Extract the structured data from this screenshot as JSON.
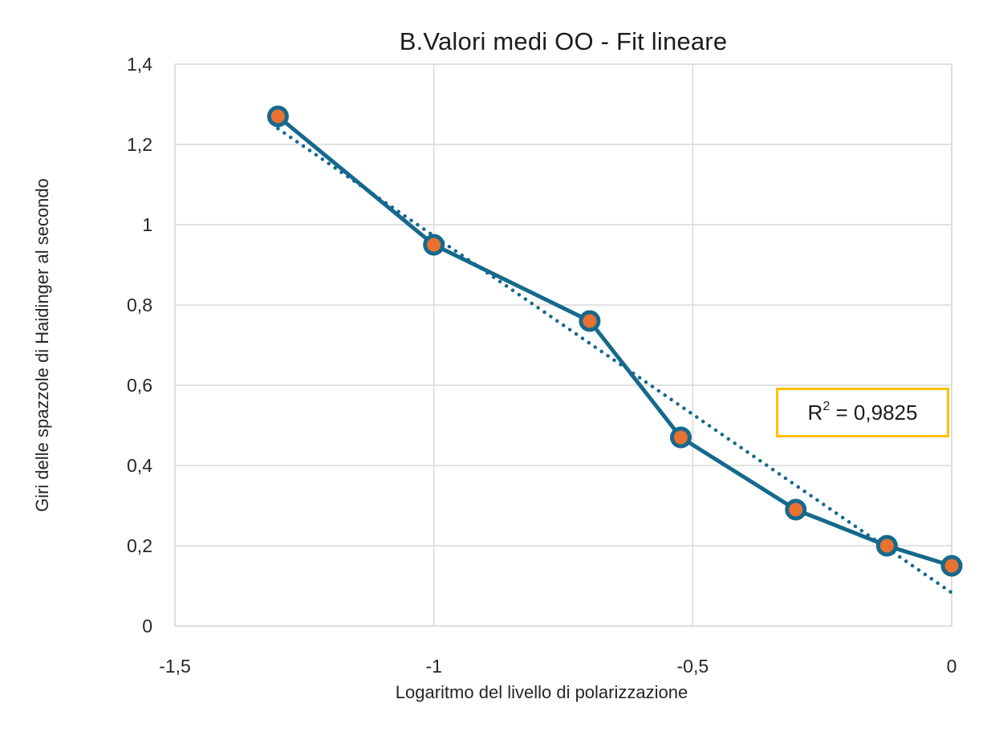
{
  "page": {
    "background": "#FFFFFF"
  },
  "chart_data": {
    "type": "line",
    "title": "B.Valori medi OO - Fit lineare",
    "xlabel": "Logaritmo del livello di polarizzazione",
    "ylabel": "Giri delle spazzole di Haidinger al secondo",
    "series": {
      "x": [
        -1.301,
        -1.0,
        -0.699,
        -0.523,
        -0.301,
        -0.125,
        0
      ],
      "y": [
        1.27,
        0.95,
        0.76,
        0.47,
        0.29,
        0.2,
        0.15
      ]
    },
    "xlim": [
      -1.5,
      0
    ],
    "ylim": [
      0,
      1.4
    ],
    "x_tick_values": [
      -1.5,
      -1,
      -0.5,
      0
    ],
    "x_tick_labels": [
      "-1,5",
      "-1",
      "-0,5",
      "0"
    ],
    "y_tick_values": [
      0,
      0.2,
      0.4,
      0.6,
      0.8,
      1,
      1.2,
      1.4
    ],
    "y_tick_labels": [
      "0",
      "0,2",
      "0,4",
      "0,6",
      "0,8",
      "1",
      "1,2",
      "1,4"
    ],
    "grid": true,
    "legend": "none",
    "trendline": {
      "kind": "linear",
      "slope": -0.889,
      "intercept": 0.083,
      "x_range": [
        -1.301,
        0
      ],
      "r_squared_label": "R² = 0,9825"
    },
    "annotation": {
      "base": "R",
      "sup": "2",
      "rest": " = 0,9825"
    },
    "colors": {
      "series_line": "#16698C",
      "marker_fill": "#E97132",
      "marker_stroke": "#16698C",
      "trendline": "#16698C",
      "gridline": "#D9D9D9",
      "plot_border": "#D9D9D9",
      "annotation_border": "#FFC000",
      "text": "#262626"
    }
  }
}
